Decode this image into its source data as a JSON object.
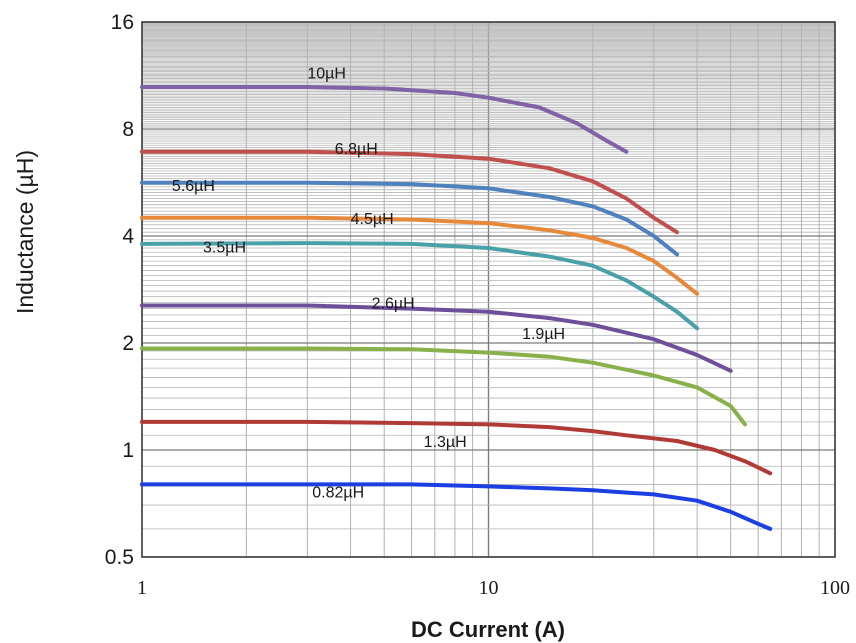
{
  "chart_data": {
    "type": "line",
    "xlabel": "DC Current (A)",
    "ylabel": "Inductance (µH)",
    "x_scale": "log",
    "y_scale": "log",
    "xlim": [
      1,
      100
    ],
    "ylim": [
      0.5,
      16
    ],
    "x_ticks": [
      "1",
      "10",
      "100"
    ],
    "y_ticks": [
      "0.5",
      "1",
      "2",
      "4",
      "8",
      "16"
    ],
    "grid": true,
    "series": [
      {
        "name": "10µH",
        "color": "#7f63a6",
        "points": [
          [
            1,
            10.5
          ],
          [
            3,
            10.5
          ],
          [
            5,
            10.4
          ],
          [
            8,
            10.1
          ],
          [
            10,
            9.8
          ],
          [
            14,
            9.2
          ],
          [
            18,
            8.3
          ],
          [
            22,
            7.4
          ],
          [
            25,
            6.9
          ]
        ]
      },
      {
        "name": "6.8µH",
        "color": "#c0504d",
        "points": [
          [
            1,
            6.9
          ],
          [
            3,
            6.9
          ],
          [
            6,
            6.8
          ],
          [
            10,
            6.6
          ],
          [
            15,
            6.2
          ],
          [
            20,
            5.7
          ],
          [
            25,
            5.1
          ],
          [
            30,
            4.5
          ],
          [
            35,
            4.1
          ]
        ]
      },
      {
        "name": "5.6µH",
        "color": "#4f81bd",
        "points": [
          [
            1,
            5.65
          ],
          [
            3,
            5.65
          ],
          [
            6,
            5.6
          ],
          [
            10,
            5.45
          ],
          [
            15,
            5.15
          ],
          [
            20,
            4.85
          ],
          [
            25,
            4.45
          ],
          [
            30,
            4.0
          ],
          [
            35,
            3.55
          ]
        ]
      },
      {
        "name": "4.5µH",
        "color": "#e7893a",
        "points": [
          [
            1,
            4.5
          ],
          [
            3,
            4.5
          ],
          [
            6,
            4.45
          ],
          [
            10,
            4.35
          ],
          [
            15,
            4.15
          ],
          [
            20,
            3.95
          ],
          [
            25,
            3.7
          ],
          [
            30,
            3.4
          ],
          [
            35,
            3.05
          ],
          [
            40,
            2.75
          ]
        ]
      },
      {
        "name": "3.5µH",
        "color": "#4aa0a8",
        "points": [
          [
            1,
            3.8
          ],
          [
            3,
            3.82
          ],
          [
            6,
            3.8
          ],
          [
            10,
            3.7
          ],
          [
            15,
            3.5
          ],
          [
            20,
            3.3
          ],
          [
            25,
            3.0
          ],
          [
            30,
            2.7
          ],
          [
            35,
            2.45
          ],
          [
            40,
            2.2
          ]
        ]
      },
      {
        "name": "2.6µH",
        "color": "#6e4f9a",
        "points": [
          [
            1,
            2.55
          ],
          [
            3,
            2.55
          ],
          [
            6,
            2.5
          ],
          [
            10,
            2.45
          ],
          [
            15,
            2.35
          ],
          [
            20,
            2.25
          ],
          [
            30,
            2.05
          ],
          [
            40,
            1.85
          ],
          [
            50,
            1.67
          ]
        ]
      },
      {
        "name": "1.9µH",
        "color": "#88b04b",
        "points": [
          [
            1,
            1.93
          ],
          [
            3,
            1.93
          ],
          [
            6,
            1.92
          ],
          [
            10,
            1.88
          ],
          [
            15,
            1.83
          ],
          [
            20,
            1.76
          ],
          [
            30,
            1.62
          ],
          [
            40,
            1.5
          ],
          [
            50,
            1.33
          ],
          [
            55,
            1.18
          ]
        ]
      },
      {
        "name": "1.3µH",
        "color": "#b03a36",
        "points": [
          [
            1,
            1.2
          ],
          [
            3,
            1.2
          ],
          [
            6,
            1.19
          ],
          [
            10,
            1.18
          ],
          [
            15,
            1.16
          ],
          [
            20,
            1.13
          ],
          [
            25,
            1.1
          ],
          [
            35,
            1.06
          ],
          [
            45,
            1.0
          ],
          [
            55,
            0.93
          ],
          [
            65,
            0.86
          ]
        ]
      },
      {
        "name": "0.82µH",
        "color": "#1b3fe0",
        "points": [
          [
            1,
            0.8
          ],
          [
            3,
            0.8
          ],
          [
            6,
            0.8
          ],
          [
            10,
            0.79
          ],
          [
            15,
            0.78
          ],
          [
            20,
            0.77
          ],
          [
            30,
            0.75
          ],
          [
            40,
            0.72
          ],
          [
            50,
            0.67
          ],
          [
            60,
            0.62
          ],
          [
            65,
            0.6
          ]
        ]
      }
    ],
    "annotations": [
      {
        "text": "10µH",
        "x": 3.0,
        "y": 11.1
      },
      {
        "text": "6.8µH",
        "x": 3.6,
        "y": 6.8
      },
      {
        "text": "5.6µH",
        "x": 1.22,
        "y": 5.35
      },
      {
        "text": "4.5µH",
        "x": 4.0,
        "y": 4.33
      },
      {
        "text": "3.5µH",
        "x": 1.5,
        "y": 3.6
      },
      {
        "text": "2.6µH",
        "x": 4.6,
        "y": 2.5
      },
      {
        "text": "1.9µH",
        "x": 12.5,
        "y": 2.05
      },
      {
        "text": "1.3µH",
        "x": 6.5,
        "y": 1.02
      },
      {
        "text": "0.82µH",
        "x": 3.1,
        "y": 0.735
      }
    ]
  }
}
